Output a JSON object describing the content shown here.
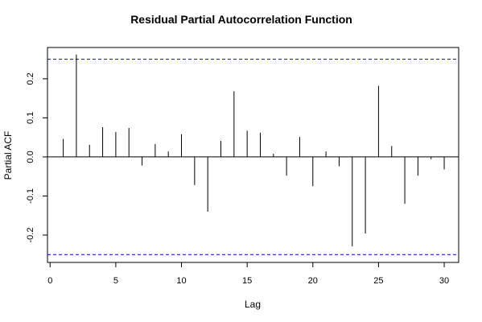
{
  "chart_data": {
    "type": "bar",
    "title": "Residual Partial Autocorrelation Function",
    "xlabel": "Lag",
    "ylabel": "Partial ACF",
    "xlim": [
      -0.2,
      31.1
    ],
    "ylim": [
      -0.27,
      0.28
    ],
    "x_ticks": [
      0,
      5,
      10,
      15,
      20,
      25,
      30
    ],
    "x_tick_labels": [
      "0",
      "5",
      "10",
      "15",
      "20",
      "25",
      "30"
    ],
    "y_ticks": [
      -0.2,
      -0.1,
      0.0,
      0.1,
      0.2
    ],
    "y_tick_labels": [
      "-0.2",
      "-0.1",
      "0.0",
      "0.1",
      "0.2"
    ],
    "lags": [
      1,
      2,
      3,
      4,
      5,
      6,
      7,
      8,
      9,
      10,
      11,
      12,
      13,
      14,
      15,
      16,
      17,
      18,
      19,
      20,
      21,
      22,
      23,
      24,
      25,
      26,
      27,
      28,
      29,
      30
    ],
    "values": [
      0.046,
      0.262,
      0.031,
      0.076,
      0.064,
      0.074,
      -0.022,
      0.033,
      0.014,
      0.058,
      -0.072,
      -0.14,
      0.041,
      0.168,
      0.067,
      0.062,
      0.008,
      -0.048,
      0.051,
      -0.075,
      0.014,
      -0.024,
      -0.229,
      -0.196,
      0.182,
      0.028,
      -0.12,
      -0.048,
      -0.006,
      -0.032
    ],
    "confidence_bound": 0.25,
    "zero_line": 0,
    "grid": false,
    "colors": {
      "spike": "#000000",
      "bound": "#0000cc",
      "frame": "#000000"
    }
  }
}
